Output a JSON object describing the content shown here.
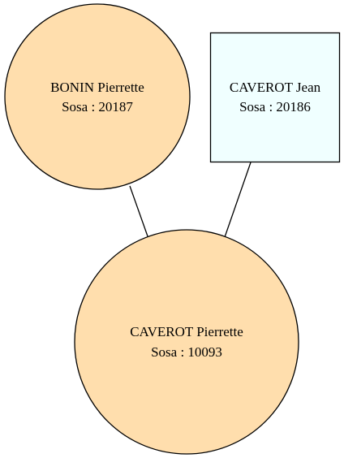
{
  "diagram": {
    "type": "family-tree",
    "nodes": {
      "mother": {
        "name": "BONIN Pierrette",
        "sosa": "Sosa : 20187",
        "shape": "circle",
        "fill": "#FFDEAD"
      },
      "father": {
        "name": "CAVEROT Jean",
        "sosa": "Sosa : 20186",
        "shape": "box",
        "fill": "#F0FFFF"
      },
      "child": {
        "name": "CAVEROT Pierrette",
        "sosa": "Sosa : 10093",
        "shape": "circle",
        "fill": "#FFDEAD"
      }
    },
    "edges": [
      {
        "from": "mother",
        "to": "child"
      },
      {
        "from": "father",
        "to": "child"
      }
    ]
  },
  "colors": {
    "stroke": "#000000",
    "background": "#FFFFFF"
  }
}
